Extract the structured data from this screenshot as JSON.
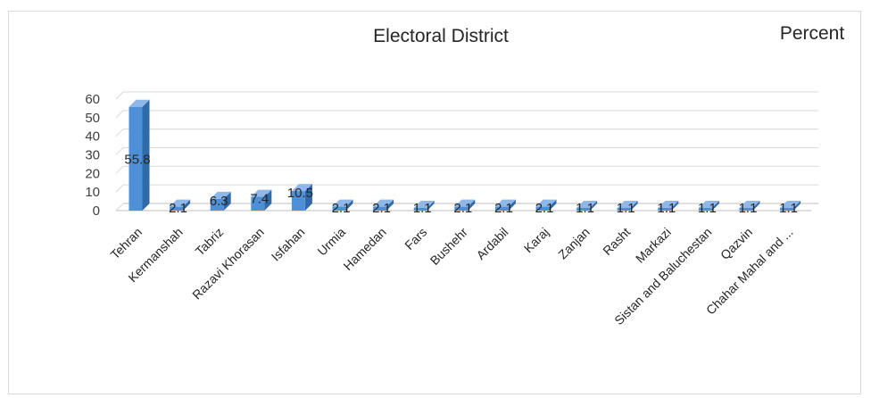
{
  "chart_data": {
    "type": "bar",
    "title": "Electoral District",
    "ylabel": "Percent",
    "xlabel": "",
    "ylim": [
      0,
      60
    ],
    "yticks": [
      0,
      10,
      20,
      30,
      40,
      50,
      60
    ],
    "grid": true,
    "legend": "none",
    "categories": [
      "Tehran",
      "Kermanshah",
      "Tabriz",
      "Razavi Khorasan",
      "Isfahan",
      "Urmia",
      "Hamedan",
      "Fars",
      "Bushehr",
      "Ardabil",
      "Karaj",
      "Zanjan",
      "Rasht",
      "Markazi",
      "Sistan and Baluchestan",
      "Qazvin",
      "Chahar Mahal and ..."
    ],
    "values": [
      55.8,
      2.1,
      6.3,
      7.4,
      10.5,
      2.1,
      2.1,
      1.1,
      2.1,
      2.1,
      2.1,
      1.1,
      1.1,
      1.1,
      1.1,
      1.1,
      1.1
    ],
    "value_labels": [
      "55.8",
      "2.1",
      "6.3",
      "7.4",
      "10.5",
      "2.1",
      "2.1",
      "1.1",
      "2.1",
      "2.1",
      "2.1",
      "1.1",
      "1.1",
      "1.1",
      "1.1",
      "1.1",
      "1.1"
    ],
    "colors": {
      "bar_front": "#4f8fd6",
      "bar_side": "#2f6aaa",
      "bar_top": "#8fb8e8",
      "grid": "#d9d9d9",
      "floor": "#bfbfbf"
    }
  }
}
